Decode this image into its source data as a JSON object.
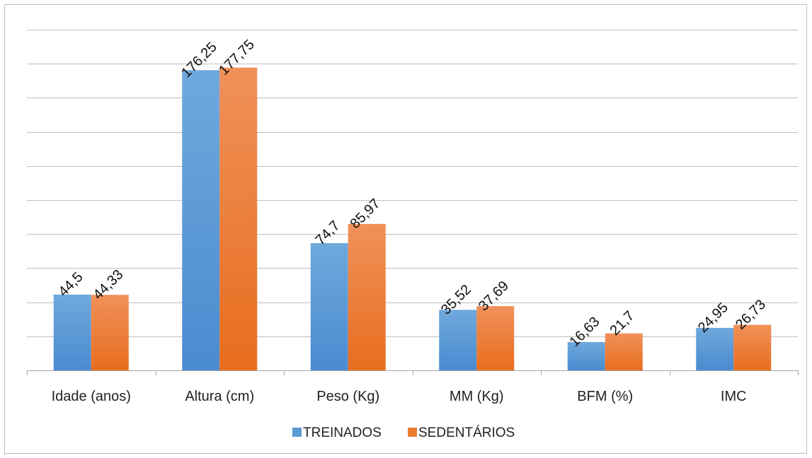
{
  "chart_data": {
    "type": "bar",
    "categories": [
      "Idade (anos)",
      "Altura (cm)",
      "Peso (Kg)",
      "MM (Kg)",
      "BFM (%)",
      "IMC"
    ],
    "series": [
      {
        "name": "TREINADOS",
        "values": [
          44.5,
          176.25,
          74.7,
          35.52,
          16.63,
          24.95
        ],
        "labels": [
          "44,5",
          "176,25",
          "74,7",
          "35,52",
          "16,63",
          "24,95"
        ],
        "color": "#5b9bd5"
      },
      {
        "name": "SEDENTÁRIOS",
        "values": [
          44.33,
          177.75,
          85.97,
          37.69,
          21.7,
          26.73
        ],
        "labels": [
          "44,33",
          "177,75",
          "85,97",
          "37,69",
          "21,7",
          "26,73"
        ],
        "color": "#ed7d31"
      }
    ],
    "ylim": [
      0,
      200
    ],
    "grid": true,
    "legend_position": "bottom",
    "title": "",
    "xlabel": "",
    "ylabel": ""
  }
}
